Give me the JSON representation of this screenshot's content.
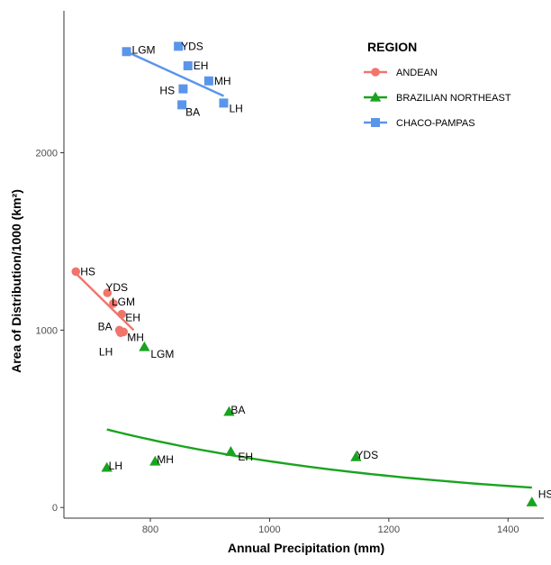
{
  "chart_data": {
    "type": "scatter",
    "xlabel": "Annual Precipitation (mm)",
    "ylabel": "Area of Distribution/1000 (km²)",
    "xlim": [
      655,
      1460
    ],
    "ylim": [
      -60,
      2800
    ],
    "x_ticks": [
      800,
      1000,
      1200,
      1400
    ],
    "y_ticks": [
      0,
      1000,
      2000
    ],
    "grid": false,
    "legend": {
      "title": "REGION",
      "position": "top-right",
      "entries": [
        "ANDEAN",
        "BRAZILIAN NORTHEAST",
        "CHACO-PAMPAS"
      ]
    },
    "series": [
      {
        "name": "ANDEAN",
        "color": "#f0756b",
        "marker": "circle",
        "points": [
          {
            "label": "HS",
            "x": 675,
            "y": 1330
          },
          {
            "label": "YDS",
            "x": 728,
            "y": 1210
          },
          {
            "label": "LGM",
            "x": 738,
            "y": 1150
          },
          {
            "label": "EH",
            "x": 752,
            "y": 1090
          },
          {
            "label": "BA",
            "x": 748,
            "y": 1000
          },
          {
            "label": "MH",
            "x": 755,
            "y": 990
          },
          {
            "label": "LH",
            "x": 750,
            "y": 985
          }
        ],
        "fit": {
          "type": "linear",
          "x": [
            675,
            772
          ],
          "y": [
            1320,
            1000
          ]
        }
      },
      {
        "name": "BRAZILIAN NORTHEAST",
        "color": "#1aa31f",
        "marker": "triangle",
        "points": [
          {
            "label": "HS",
            "x": 1440,
            "y": 30
          },
          {
            "label": "YDS",
            "x": 1145,
            "y": 285
          },
          {
            "label": "BA",
            "x": 932,
            "y": 540
          },
          {
            "label": "EH",
            "x": 935,
            "y": 315
          },
          {
            "label": "MH",
            "x": 808,
            "y": 260
          },
          {
            "label": "LH",
            "x": 727,
            "y": 225
          },
          {
            "label": "LGM",
            "x": 790,
            "y": 905
          }
        ],
        "fit": {
          "type": "exponential",
          "a": 1770,
          "b": 0.001915,
          "x": [
            727,
            1440
          ]
        }
      },
      {
        "name": "CHACO-PAMPAS",
        "color": "#5b95ea",
        "marker": "square",
        "points": [
          {
            "label": "LGM",
            "x": 760,
            "y": 2570
          },
          {
            "label": "YDS",
            "x": 847,
            "y": 2600
          },
          {
            "label": "EH",
            "x": 863,
            "y": 2490
          },
          {
            "label": "MH",
            "x": 898,
            "y": 2405
          },
          {
            "label": "HS",
            "x": 855,
            "y": 2360
          },
          {
            "label": "LH",
            "x": 923,
            "y": 2280
          },
          {
            "label": "BA",
            "x": 853,
            "y": 2270
          }
        ],
        "fit": {
          "type": "linear",
          "x": [
            760,
            923
          ],
          "y": [
            2570,
            2320
          ]
        }
      }
    ]
  }
}
